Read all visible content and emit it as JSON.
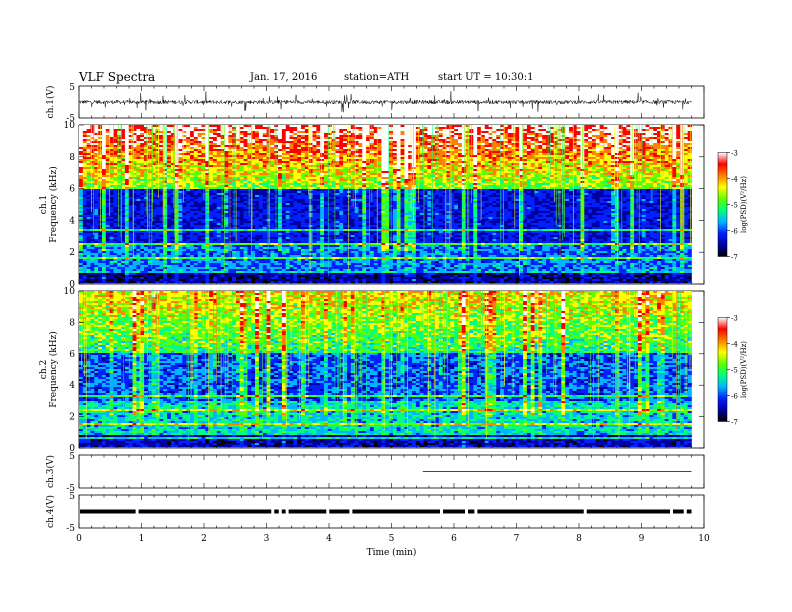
{
  "header": {
    "title": "VLF Spectra",
    "date": "Jan. 17, 2016",
    "station": "station=ATH",
    "start": "start UT = 10:30:1"
  },
  "colors": {
    "spectrum_scale": [
      "#000000",
      "#0000a0",
      "#0020ff",
      "#00b4ff",
      "#00ff80",
      "#60ff00",
      "#ffff00",
      "#ff8000",
      "#ff0000",
      "#ffffff"
    ]
  },
  "chart_data": [
    {
      "name": "ch.1 waveform",
      "type": "line",
      "ylabel": "ch.1(V)",
      "ylim": [
        -5,
        5
      ],
      "yticks": [
        "5",
        "-5"
      ],
      "xlim": [
        0,
        10
      ],
      "baseline": 0,
      "amplitude": 0.6
    },
    {
      "name": "ch.1 spectrogram",
      "type": "heatmap",
      "ylabel_lines": [
        "ch.1",
        "Frequency (kHz)"
      ],
      "ylim": [
        0,
        10
      ],
      "yticks": [
        "0",
        "2",
        "4",
        "6",
        "8",
        "10"
      ],
      "xlim": [
        0,
        10
      ],
      "colorbar": {
        "label": "log(PSD)(V²/Hz)",
        "range": [
          -7,
          -3
        ],
        "ticks": [
          "-3",
          "-4",
          "-5",
          "-6",
          "-7"
        ]
      }
    },
    {
      "name": "ch.2 spectrogram",
      "type": "heatmap",
      "ylabel_lines": [
        "ch.2",
        "Frequency (kHz)"
      ],
      "ylim": [
        0,
        10
      ],
      "yticks": [
        "0",
        "2",
        "4",
        "6",
        "8",
        "10"
      ],
      "xlim": [
        0,
        10
      ],
      "colorbar": {
        "label": "log(PSD)(V²/Hz)",
        "range": [
          -7,
          -3
        ],
        "ticks": [
          "-3",
          "-4",
          "-5",
          "-6",
          "-7"
        ]
      }
    },
    {
      "name": "ch.3 waveform",
      "type": "line",
      "ylabel": "ch.3(V)",
      "ylim": [
        -5,
        5
      ],
      "yticks": [
        "5",
        "-5"
      ],
      "xlim": [
        0,
        10
      ],
      "segment_x": [
        5.5,
        9.8
      ],
      "level": 0
    },
    {
      "name": "ch.4 waveform",
      "type": "line",
      "ylabel": "ch.4(V)",
      "ylim": [
        -5,
        5
      ],
      "yticks": [
        "5",
        "-5"
      ],
      "xlim": [
        0,
        10
      ],
      "level": 0,
      "gaps_min": [
        0.93,
        3.1,
        3.22,
        3.33,
        3.98,
        4.35,
        5.8,
        6.2,
        6.35,
        8.1,
        9.48,
        9.7
      ]
    }
  ],
  "xaxis": {
    "label": "Time (min)",
    "ticks": [
      "0",
      "1",
      "2",
      "3",
      "4",
      "5",
      "6",
      "7",
      "8",
      "9",
      "10"
    ],
    "xlim": [
      0,
      10
    ],
    "data_end": 9.8
  }
}
